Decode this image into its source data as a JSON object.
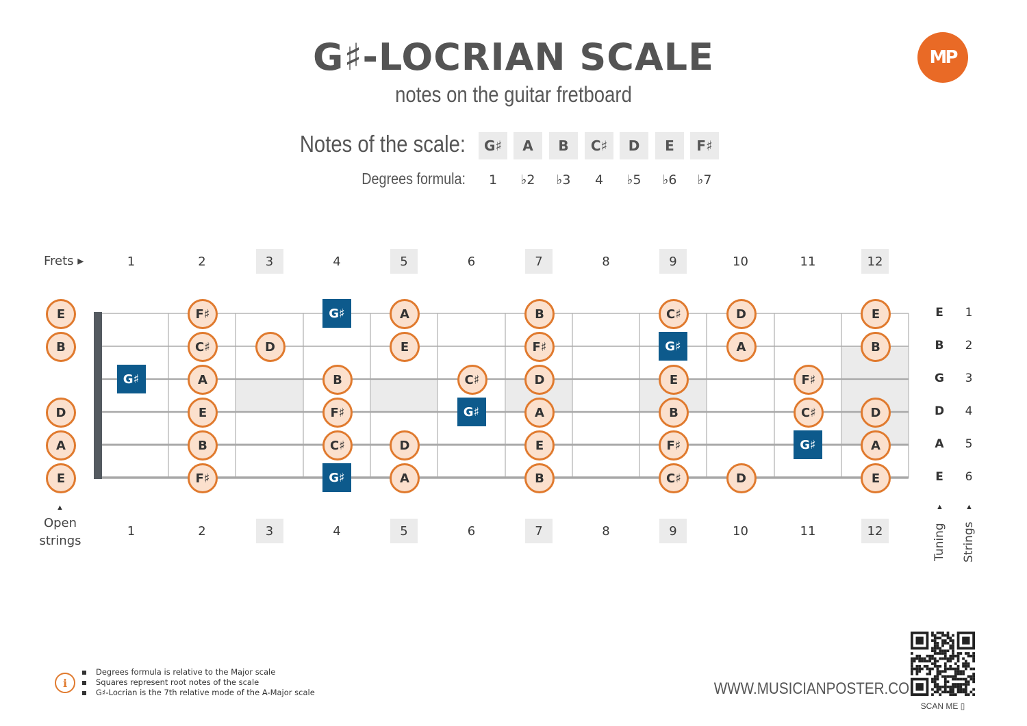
{
  "title": "G♯-LOCRIAN SCALE",
  "subtitle": "notes on the guitar fretboard",
  "logo_text": "MP",
  "scale": {
    "notes_label": "Notes of the scale:",
    "degrees_label": "Degrees formula:",
    "notes": [
      "G♯",
      "A",
      "B",
      "C♯",
      "D",
      "E",
      "F♯"
    ],
    "degrees": [
      "1",
      "♭2",
      "♭3",
      "4",
      "♭5",
      "♭6",
      "♭7"
    ]
  },
  "fretboard": {
    "frets_label": "Frets ▸",
    "open_strings_label": [
      "Open",
      "strings"
    ],
    "fret_numbers": [
      "1",
      "2",
      "3",
      "4",
      "5",
      "6",
      "7",
      "8",
      "9",
      "10",
      "11",
      "12"
    ],
    "marked_frets": [
      3,
      5,
      7,
      9,
      12
    ],
    "tuning_label": "Tuning",
    "strings_label": "Strings",
    "strings": [
      {
        "tuning": "E",
        "number": "1"
      },
      {
        "tuning": "B",
        "number": "2"
      },
      {
        "tuning": "G",
        "number": "3"
      },
      {
        "tuning": "D",
        "number": "4"
      },
      {
        "tuning": "A",
        "number": "5"
      },
      {
        "tuning": "E",
        "number": "6"
      }
    ],
    "positions": [
      {
        "string": 1,
        "fret": 0,
        "note": "E"
      },
      {
        "string": 1,
        "fret": 2,
        "note": "F♯"
      },
      {
        "string": 1,
        "fret": 4,
        "note": "G♯",
        "root": true
      },
      {
        "string": 1,
        "fret": 5,
        "note": "A"
      },
      {
        "string": 1,
        "fret": 7,
        "note": "B"
      },
      {
        "string": 1,
        "fret": 9,
        "note": "C♯"
      },
      {
        "string": 1,
        "fret": 10,
        "note": "D"
      },
      {
        "string": 1,
        "fret": 12,
        "note": "E"
      },
      {
        "string": 2,
        "fret": 0,
        "note": "B"
      },
      {
        "string": 2,
        "fret": 2,
        "note": "C♯"
      },
      {
        "string": 2,
        "fret": 3,
        "note": "D"
      },
      {
        "string": 2,
        "fret": 5,
        "note": "E"
      },
      {
        "string": 2,
        "fret": 7,
        "note": "F♯"
      },
      {
        "string": 2,
        "fret": 9,
        "note": "G♯",
        "root": true
      },
      {
        "string": 2,
        "fret": 10,
        "note": "A"
      },
      {
        "string": 2,
        "fret": 12,
        "note": "B"
      },
      {
        "string": 3,
        "fret": 1,
        "note": "G♯",
        "root": true
      },
      {
        "string": 3,
        "fret": 2,
        "note": "A"
      },
      {
        "string": 3,
        "fret": 4,
        "note": "B"
      },
      {
        "string": 3,
        "fret": 6,
        "note": "C♯"
      },
      {
        "string": 3,
        "fret": 7,
        "note": "D"
      },
      {
        "string": 3,
        "fret": 9,
        "note": "E"
      },
      {
        "string": 3,
        "fret": 11,
        "note": "F♯"
      },
      {
        "string": 4,
        "fret": 0,
        "note": "D"
      },
      {
        "string": 4,
        "fret": 2,
        "note": "E"
      },
      {
        "string": 4,
        "fret": 4,
        "note": "F♯"
      },
      {
        "string": 4,
        "fret": 6,
        "note": "G♯",
        "root": true
      },
      {
        "string": 4,
        "fret": 7,
        "note": "A"
      },
      {
        "string": 4,
        "fret": 9,
        "note": "B"
      },
      {
        "string": 4,
        "fret": 11,
        "note": "C♯"
      },
      {
        "string": 4,
        "fret": 12,
        "note": "D"
      },
      {
        "string": 5,
        "fret": 0,
        "note": "A"
      },
      {
        "string": 5,
        "fret": 2,
        "note": "B"
      },
      {
        "string": 5,
        "fret": 4,
        "note": "C♯"
      },
      {
        "string": 5,
        "fret": 5,
        "note": "D"
      },
      {
        "string": 5,
        "fret": 7,
        "note": "E"
      },
      {
        "string": 5,
        "fret": 9,
        "note": "F♯"
      },
      {
        "string": 5,
        "fret": 11,
        "note": "G♯",
        "root": true
      },
      {
        "string": 5,
        "fret": 12,
        "note": "A"
      },
      {
        "string": 6,
        "fret": 0,
        "note": "E"
      },
      {
        "string": 6,
        "fret": 2,
        "note": "F♯"
      },
      {
        "string": 6,
        "fret": 4,
        "note": "G♯",
        "root": true
      },
      {
        "string": 6,
        "fret": 5,
        "note": "A"
      },
      {
        "string": 6,
        "fret": 7,
        "note": "B"
      },
      {
        "string": 6,
        "fret": 9,
        "note": "C♯"
      },
      {
        "string": 6,
        "fret": 10,
        "note": "D"
      },
      {
        "string": 6,
        "fret": 12,
        "note": "E"
      }
    ]
  },
  "footnotes": [
    "Degrees formula is relative to the Major scale",
    "Squares represent root notes of the scale",
    "G♯-Locrian is the 7th relative mode of the A-Major scale"
  ],
  "info_icon": "info-icon",
  "website": "WWW.MUSICIANPOSTER.COM",
  "scan_me": "SCAN ME"
}
